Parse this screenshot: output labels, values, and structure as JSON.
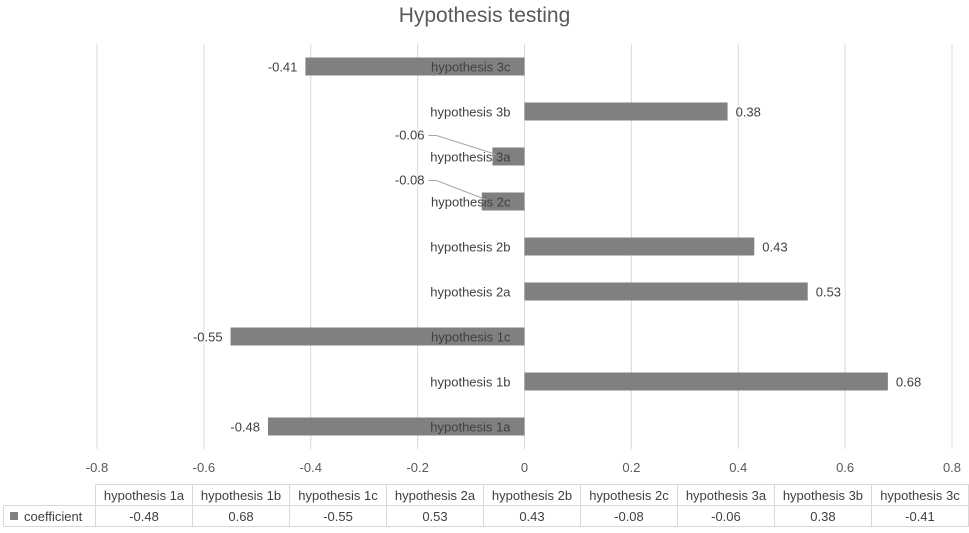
{
  "chart_data": {
    "type": "bar",
    "orientation": "horizontal",
    "title": "Hypothesis testing",
    "categories": [
      "hypothesis 1a",
      "hypothesis 1b",
      "hypothesis 1c",
      "hypothesis 2a",
      "hypothesis 2b",
      "hypothesis 2c",
      "hypothesis 3a",
      "hypothesis 3b",
      "hypothesis 3c"
    ],
    "series": [
      {
        "name": "coefficient",
        "values": [
          -0.48,
          0.68,
          -0.55,
          0.53,
          0.43,
          -0.08,
          -0.06,
          0.38,
          -0.41
        ]
      }
    ],
    "value_labels": [
      "-0.48",
      "0.68",
      "-0.55",
      "0.53",
      "0.43",
      "-0.08",
      "-0.06",
      "0.38",
      "-0.41"
    ],
    "xlim": [
      -0.8,
      0.8
    ],
    "x_ticks": [
      "-0.8",
      "-0.6",
      "-0.4",
      "-0.2",
      "0",
      "0.2",
      "0.4",
      "0.6",
      "0.8"
    ],
    "grid": "vertical",
    "legend": "data table",
    "bar_color": "#808080",
    "grid_color": "#d9d9d9"
  }
}
